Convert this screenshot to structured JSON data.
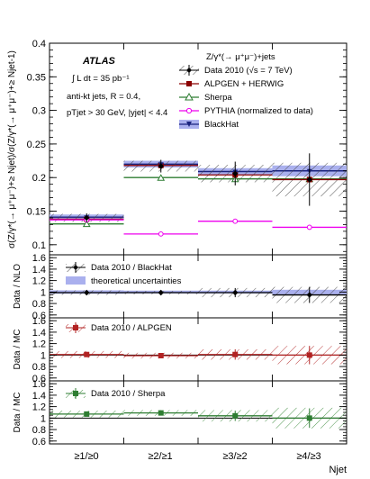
{
  "chart_data": [
    {
      "type": "scatter",
      "panel": "main",
      "ylabel": "σ(Z/γ*(→ μ⁺μ⁻)+≥ Njet)/σ(Z/γ*(→ μ⁺μ⁻)+≥ Njet-1)",
      "ylim": [
        0.085,
        0.4
      ],
      "yticks": [
        "0.1",
        "0.15",
        "0.2",
        "0.25",
        "0.3",
        "0.35",
        "0.4"
      ],
      "categories": [
        "≥1/≥0",
        "≥2/≥1",
        "≥3/≥2",
        "≥4/≥3"
      ],
      "xlabel": "Njet",
      "atlas_label": "ATLAS",
      "info_lines": [
        "∫ L dt = 35 pb⁻¹",
        "anti-kt jets,  R = 0.4,",
        "pTjet > 30 GeV, |yjet| < 4.4"
      ],
      "legend_title": "Z/γ*(→ μ⁺μ⁻)+jets",
      "legend_placement": "top-right",
      "series": [
        {
          "name": "Data 2010 (√s = 7 TeV)",
          "values": [
            0.14,
            0.217,
            0.206,
            0.197
          ],
          "err_stat": [
            0.003,
            0.005,
            0.012,
            0.03
          ],
          "err_syst": [
            0.006,
            0.008,
            0.013,
            0.025
          ]
        },
        {
          "name": "ALPGEN + HERWIG",
          "values": [
            0.138,
            0.218,
            0.204,
            0.197
          ]
        },
        {
          "name": "Sherpa",
          "values": [
            0.131,
            0.2,
            0.198,
            0.198
          ]
        },
        {
          "name": "PYTHIA (normalized to data)",
          "values": [
            0.137,
            0.116,
            0.135,
            0.126
          ]
        },
        {
          "name": "BlackHat",
          "values": [
            0.141,
            0.22,
            0.209,
            0.21
          ],
          "band": [
            0.004,
            0.005,
            0.005,
            0.008
          ]
        }
      ]
    },
    {
      "type": "scatter",
      "panel": "ratio-nlo",
      "ylabel": "Data / NLO",
      "ylim": [
        0.55,
        1.65
      ],
      "yticks": [
        "0.6",
        "0.8",
        "1",
        "1.2",
        "1.4",
        "1.6"
      ],
      "series": [
        {
          "name": "Data 2010 / BlackHat",
          "values": [
            0.99,
            0.99,
            0.99,
            0.95
          ],
          "err": [
            0.04,
            0.03,
            0.08,
            0.14
          ]
        },
        {
          "name": "theoretical uncertainties",
          "band": [
            0.03,
            0.025,
            0.025,
            0.04
          ]
        }
      ]
    },
    {
      "type": "scatter",
      "panel": "ratio-mc-alpgen",
      "ylabel": "Data / MC",
      "ylim": [
        0.55,
        1.65
      ],
      "yticks": [
        "0.6",
        "0.8",
        "1",
        "1.2",
        "1.4",
        "1.6"
      ],
      "series": [
        {
          "name": "Data 2010 / ALPGEN",
          "values": [
            1.01,
            0.99,
            1.01,
            1.0
          ],
          "err": [
            0.04,
            0.04,
            0.09,
            0.16
          ],
          "syst": [
            0.06,
            0.05,
            0.09,
            0.16
          ]
        }
      ]
    },
    {
      "type": "scatter",
      "panel": "ratio-mc-sherpa",
      "ylabel": "Data / MC",
      "ylim": [
        0.55,
        1.65
      ],
      "yticks": [
        "0.6",
        "0.8",
        "1",
        "1.2",
        "1.4",
        "1.6"
      ],
      "series": [
        {
          "name": "Data 2010 / Sherpa",
          "values": [
            1.07,
            1.09,
            1.04,
            1.0
          ],
          "err": [
            0.04,
            0.04,
            0.09,
            0.17
          ],
          "syst": [
            0.06,
            0.05,
            0.1,
            0.18
          ]
        }
      ]
    }
  ]
}
